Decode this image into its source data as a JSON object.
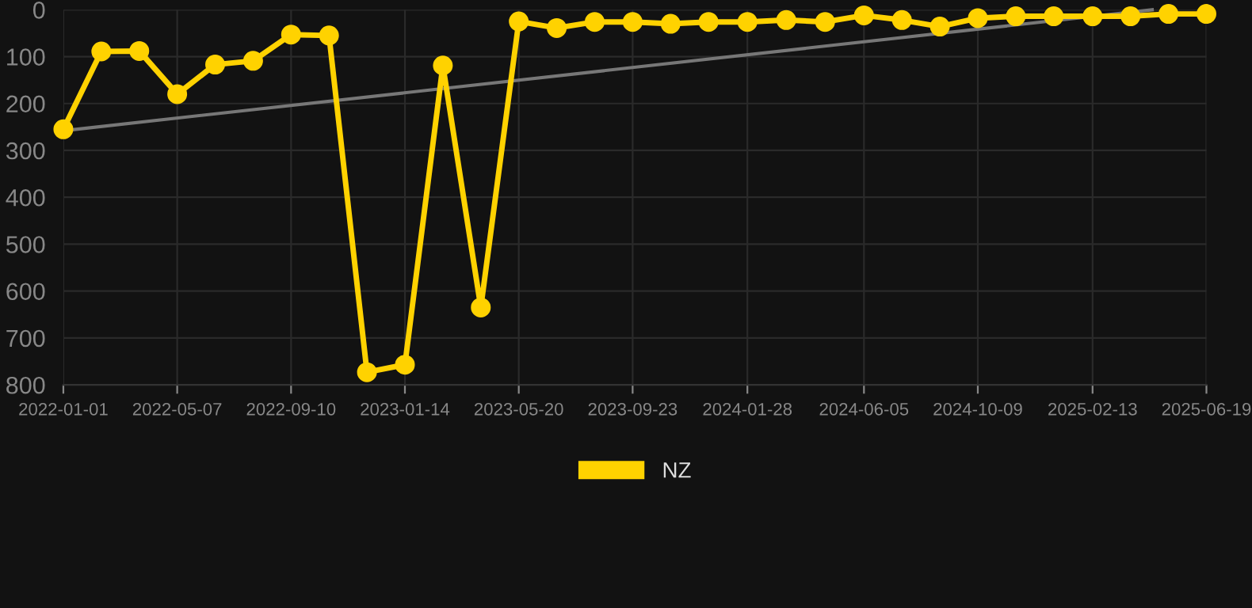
{
  "chart_data": {
    "type": "line",
    "x": [
      "2022-01-01",
      "2022-02-12",
      "2022-03-26",
      "2022-05-07",
      "2022-06-18",
      "2022-07-30",
      "2022-09-10",
      "2022-10-22",
      "2022-12-03",
      "2023-01-14",
      "2023-02-25",
      "2023-04-08",
      "2023-05-20",
      "2023-07-01",
      "2023-08-12",
      "2023-09-23",
      "2023-11-04",
      "2023-12-16",
      "2024-01-28",
      "2024-03-11",
      "2024-04-23",
      "2024-06-05",
      "2024-07-17",
      "2024-08-28",
      "2024-10-09",
      "2024-11-20",
      "2025-01-01",
      "2025-02-13",
      "2025-03-27",
      "2025-05-08",
      "2025-06-19"
    ],
    "series": [
      {
        "name": "NZ",
        "color": "#ffd200",
        "marker": "circle",
        "values": [
          255,
          89,
          88,
          180,
          117,
          109,
          53,
          55,
          773,
          757,
          119,
          635,
          25,
          39,
          26,
          26,
          30,
          26,
          26,
          22,
          26,
          12,
          22,
          36,
          18,
          14,
          14,
          14,
          14,
          9,
          9
        ]
      },
      {
        "type": "line",
        "color": "#777777",
        "marker": "none",
        "x": [
          "2022-01-01",
          "2025-04-20"
        ],
        "values": [
          258,
          0
        ]
      }
    ],
    "ylim": [
      800,
      0
    ],
    "yticks": [
      0,
      100,
      200,
      300,
      400,
      500,
      600,
      700,
      800
    ],
    "xlim": [
      "2022-01-01",
      "2025-06-19"
    ],
    "xticks": [
      {
        "value": "2022-01-01",
        "label": "2022-01-01"
      },
      {
        "value": "2022-05-07",
        "label": "2022-05-07"
      },
      {
        "value": "2022-09-10",
        "label": "2022-09-10"
      },
      {
        "value": "2023-01-14",
        "label": "2023-01-14"
      },
      {
        "value": "2023-05-20",
        "label": "2023-05-20"
      },
      {
        "value": "2023-09-23",
        "label": "2023-09-23"
      },
      {
        "value": "2024-01-28",
        "label": "2024-01-28"
      },
      {
        "value": "2024-06-05",
        "label": "2024-06-05"
      },
      {
        "value": "2024-10-09",
        "label": "2024-10-09"
      },
      {
        "value": "2025-02-13",
        "label": "2025-02-13"
      },
      {
        "value": "2025-06-19",
        "label": "2025-06-19"
      }
    ],
    "grid": true,
    "legend": "bottom"
  }
}
